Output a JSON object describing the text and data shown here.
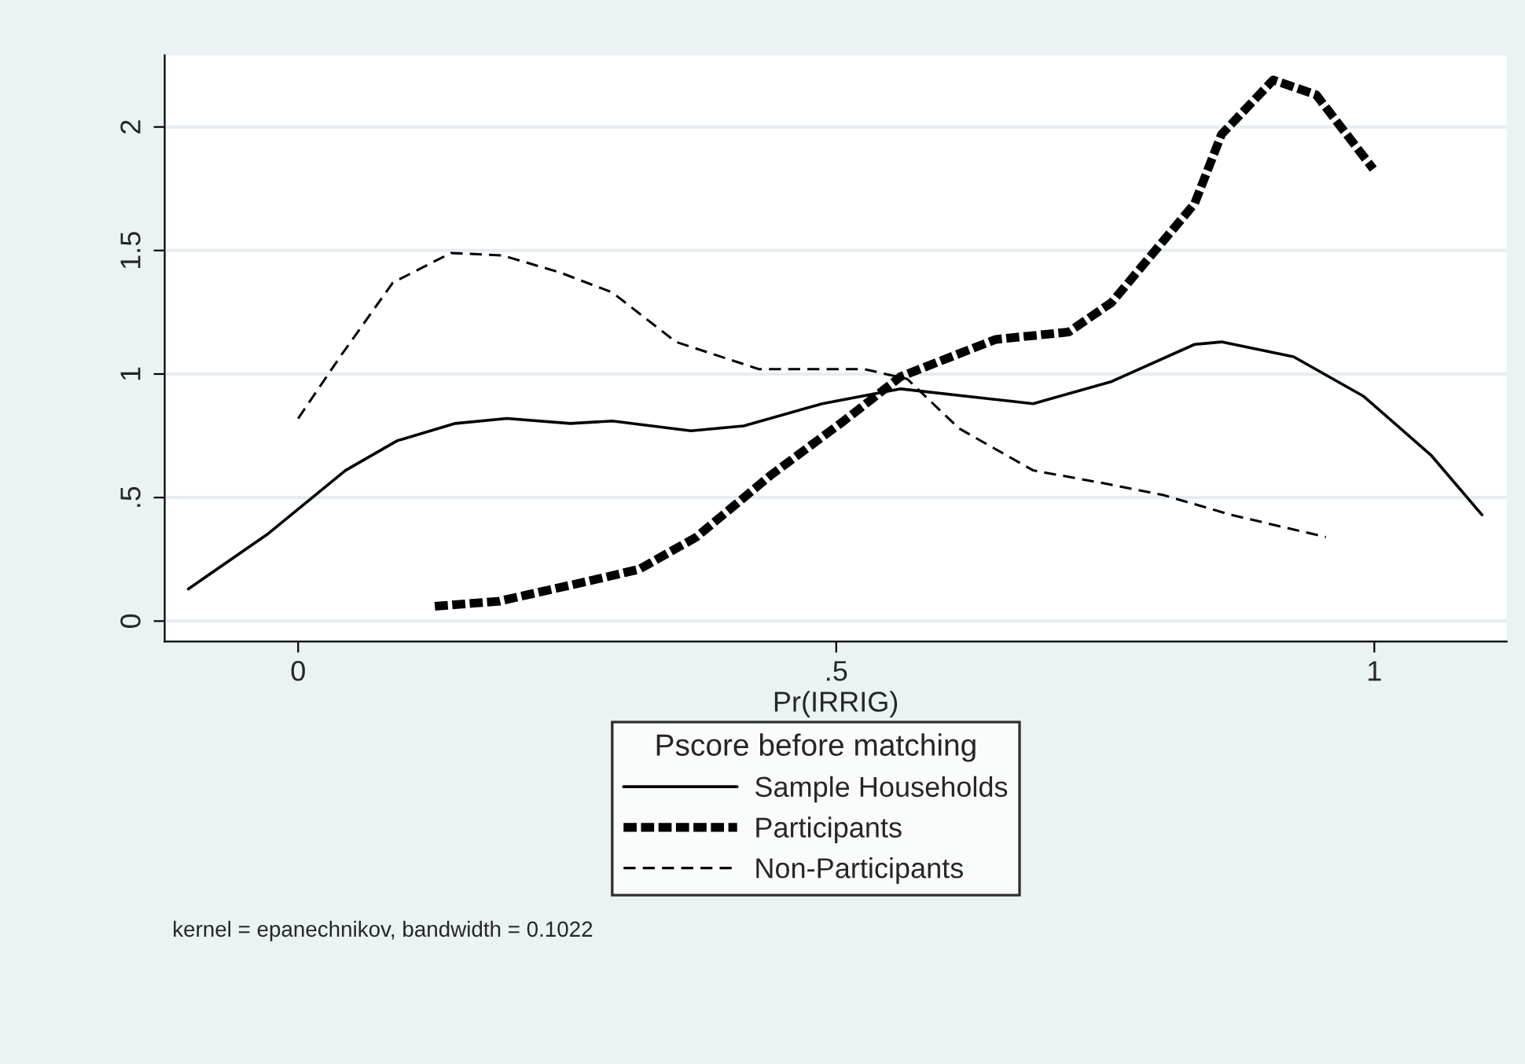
{
  "chart_data": {
    "type": "line",
    "xlabel": "Pr(IRRIG)",
    "legend_title": "Pscore before matching",
    "xlim": [
      -0.124,
      1.123
    ],
    "ylim": [
      -0.083,
      2.29
    ],
    "xticks": [
      0,
      {
        "value": 0.5,
        "label": ".5"
      },
      1
    ],
    "yticks": [
      0,
      {
        "value": 0.5,
        "label": ".5"
      },
      1,
      {
        "value": 1.5,
        "label": "1.5"
      },
      2
    ],
    "grid": "y",
    "legend": "bottom",
    "marker": "none",
    "series": [
      {
        "name": "Sample Households",
        "color": "#000000",
        "line_style": "solid",
        "x": [
          -0.102,
          -0.029,
          0.044,
          0.092,
          0.146,
          0.194,
          0.253,
          0.292,
          0.365,
          0.414,
          0.487,
          0.56,
          0.683,
          0.756,
          0.833,
          0.858,
          0.925,
          0.99,
          1.053,
          1.1
        ],
        "values": [
          0.13,
          0.35,
          0.61,
          0.73,
          0.8,
          0.82,
          0.8,
          0.81,
          0.77,
          0.79,
          0.88,
          0.94,
          0.88,
          0.97,
          1.12,
          1.13,
          1.07,
          0.91,
          0.67,
          0.43
        ]
      },
      {
        "name": "Participants",
        "color": "#000000",
        "line_style": "dashed",
        "x": [
          0.127,
          0.186,
          0.268,
          0.317,
          0.37,
          0.439,
          0.507,
          0.56,
          0.648,
          0.716,
          0.756,
          0.833,
          0.858,
          0.906,
          0.946,
          0.999
        ],
        "values": [
          0.06,
          0.08,
          0.16,
          0.21,
          0.34,
          0.59,
          0.81,
          0.99,
          1.14,
          1.17,
          1.29,
          1.69,
          1.97,
          2.19,
          2.13,
          1.83
        ]
      },
      {
        "name": "Non-Participants",
        "color": "#000000",
        "line_style": "dashed",
        "x": [
          0,
          0.039,
          0.088,
          0.142,
          0.19,
          0.244,
          0.292,
          0.351,
          0.428,
          0.501,
          0.526,
          0.566,
          0.614,
          0.683,
          0.746,
          0.804,
          0.867,
          0.955
        ],
        "values": [
          0.82,
          1.07,
          1.37,
          1.49,
          1.48,
          1.41,
          1.33,
          1.13,
          1.02,
          1.02,
          1.02,
          0.98,
          0.78,
          0.61,
          0.56,
          0.51,
          0.43,
          0.34
        ]
      }
    ],
    "annotations": [
      "kernel = epanechnikov, bandwidth = 0.1022"
    ]
  }
}
